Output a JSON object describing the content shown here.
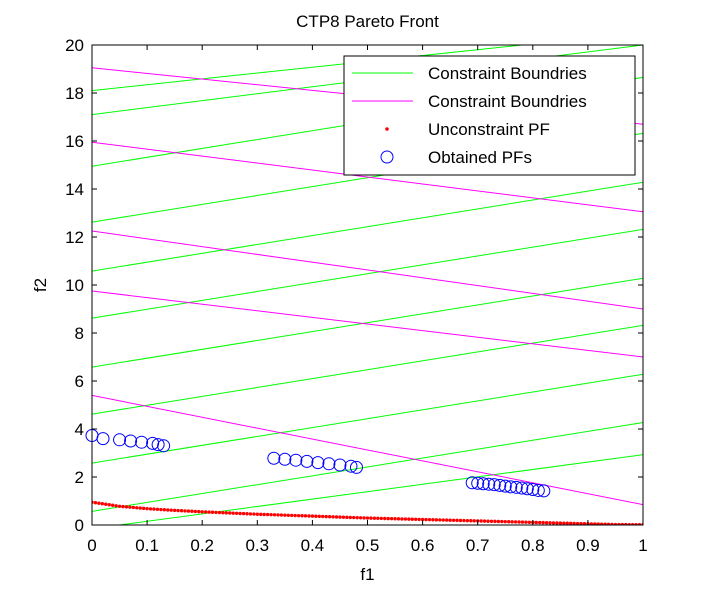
{
  "chart_data": {
    "type": "scatter",
    "title": "CTP8 Pareto Front",
    "xlabel": "f1",
    "ylabel": "f2",
    "xlim": [
      0,
      1
    ],
    "ylim": [
      0,
      20
    ],
    "xticks": [
      0,
      0.1,
      0.2,
      0.3,
      0.4,
      0.5,
      0.6,
      0.7,
      0.8,
      0.9,
      1
    ],
    "xtick_labels": [
      "0",
      "0.1",
      "0.2",
      "0.3",
      "0.4",
      "0.5",
      "0.6",
      "0.7",
      "0.8",
      "0.9",
      "1"
    ],
    "yticks": [
      0,
      2,
      4,
      6,
      8,
      10,
      12,
      14,
      16,
      18,
      20
    ],
    "ytick_labels": [
      "0",
      "2",
      "4",
      "6",
      "8",
      "10",
      "12",
      "14",
      "16",
      "18",
      "20"
    ],
    "grid": false,
    "legend": {
      "position": "top-right",
      "entries": [
        {
          "label": "Constraint Boundries",
          "marker": "line",
          "color": "#00ff00"
        },
        {
          "label": "Constraint Boundries",
          "marker": "line",
          "color": "#ff00ff"
        },
        {
          "label": "Unconstraint PF",
          "marker": "dot",
          "color": "#ff0000"
        },
        {
          "label": "Obtained PFs",
          "marker": "circle",
          "color": "#0000ff"
        }
      ]
    },
    "series": [
      {
        "kind": "line",
        "color": "#00ff00",
        "lines": [
          {
            "x": [
              0.05,
              1.0
            ],
            "y": [
              0,
              2.93
            ]
          },
          {
            "x": [
              0,
              1.0
            ],
            "y": [
              0.57,
              4.27
            ]
          },
          {
            "x": [
              0,
              1.0
            ],
            "y": [
              2.58,
              6.28
            ]
          },
          {
            "x": [
              0,
              1.0
            ],
            "y": [
              4.62,
              8.32
            ]
          },
          {
            "x": [
              0,
              1.0
            ],
            "y": [
              6.58,
              10.28
            ]
          },
          {
            "x": [
              0,
              1.0
            ],
            "y": [
              8.62,
              12.32
            ]
          },
          {
            "x": [
              0,
              1.0
            ],
            "y": [
              10.58,
              14.28
            ]
          },
          {
            "x": [
              0,
              1.0
            ],
            "y": [
              12.62,
              16.32
            ]
          },
          {
            "x": [
              0,
              1.0
            ],
            "y": [
              14.95,
              18.65
            ]
          },
          {
            "x": [
              0,
              1.0
            ],
            "y": [
              17.1,
              20.0
            ]
          },
          {
            "x": [
              0,
              0.78
            ],
            "y": [
              18.1,
              20.0
            ]
          }
        ]
      },
      {
        "kind": "line",
        "color": "#ff00ff",
        "lines": [
          {
            "x": [
              0,
              1
            ],
            "y": [
              5.4,
              0.85
            ]
          },
          {
            "x": [
              0,
              1
            ],
            "y": [
              9.75,
              7.0
            ]
          },
          {
            "x": [
              0,
              1
            ],
            "y": [
              12.25,
              9.0
            ]
          },
          {
            "x": [
              0,
              1
            ],
            "y": [
              15.95,
              13.05
            ]
          },
          {
            "x": [
              0,
              1
            ],
            "y": [
              19.05,
              16.7
            ]
          }
        ]
      },
      {
        "name": "Unconstraint PF",
        "kind": "dots",
        "color": "#ff0000",
        "x": [
          0,
          0.05,
          0.1,
          0.15,
          0.2,
          0.25,
          0.3,
          0.35,
          0.4,
          0.45,
          0.5,
          0.55,
          0.6,
          0.65,
          0.7,
          0.75,
          0.8,
          0.85,
          0.9,
          0.95,
          1
        ],
        "y": [
          0.95,
          0.78,
          0.68,
          0.61,
          0.55,
          0.5,
          0.45,
          0.41,
          0.37,
          0.33,
          0.29,
          0.26,
          0.23,
          0.2,
          0.17,
          0.14,
          0.11,
          0.08,
          0.05,
          0.02,
          0.01
        ]
      },
      {
        "name": "Obtained PFs",
        "kind": "circles",
        "color": "#0000ff",
        "x": [
          0.0,
          0.02,
          0.05,
          0.07,
          0.09,
          0.11,
          0.12,
          0.13,
          0.33,
          0.35,
          0.37,
          0.39,
          0.41,
          0.43,
          0.45,
          0.47,
          0.48,
          0.69,
          0.7,
          0.71,
          0.72,
          0.73,
          0.74,
          0.75,
          0.76,
          0.77,
          0.78,
          0.79,
          0.8,
          0.81,
          0.82
        ],
        "y": [
          3.73,
          3.6,
          3.55,
          3.5,
          3.45,
          3.4,
          3.35,
          3.3,
          2.78,
          2.74,
          2.7,
          2.65,
          2.6,
          2.55,
          2.5,
          2.45,
          2.4,
          1.76,
          1.74,
          1.72,
          1.7,
          1.68,
          1.65,
          1.62,
          1.59,
          1.57,
          1.54,
          1.51,
          1.48,
          1.44,
          1.42
        ]
      }
    ]
  }
}
